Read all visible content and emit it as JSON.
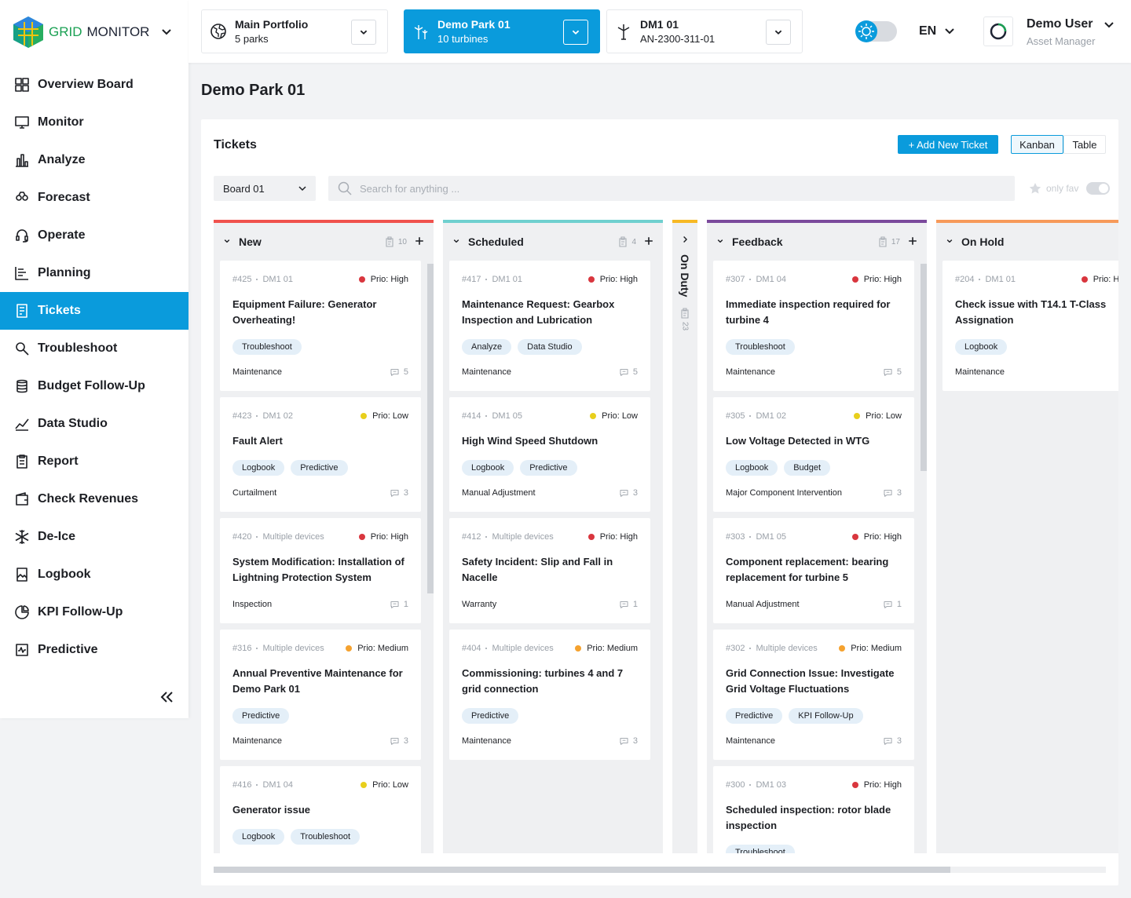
{
  "brand": {
    "part1": "GRID",
    "part2": "MONITOR"
  },
  "nav": [
    {
      "label": "Overview Board"
    },
    {
      "label": "Monitor"
    },
    {
      "label": "Analyze"
    },
    {
      "label": "Forecast"
    },
    {
      "label": "Operate"
    },
    {
      "label": "Planning"
    },
    {
      "label": "Tickets",
      "selected": true
    },
    {
      "label": "Troubleshoot"
    },
    {
      "label": "Budget Follow-Up"
    },
    {
      "label": "Data Studio"
    },
    {
      "label": "Report"
    },
    {
      "label": "Check Revenues"
    },
    {
      "label": "De-Ice"
    },
    {
      "label": "Logbook"
    },
    {
      "label": "KPI Follow-Up"
    },
    {
      "label": "Predictive"
    }
  ],
  "topbar": {
    "selectors": [
      {
        "title": "Main Portfolio",
        "subtitle": "5 parks"
      },
      {
        "title": "Demo Park 01",
        "subtitle": "10 turbines",
        "selected": true
      },
      {
        "title": "DM1 01",
        "subtitle": "AN-2300-311-01"
      }
    ],
    "language": "EN",
    "user": {
      "name": "Demo User",
      "role": "Asset Manager"
    }
  },
  "page_title": "Demo Park 01",
  "panel": {
    "title": "Tickets",
    "add_button": "+ Add New Ticket",
    "views": [
      {
        "label": "Kanban",
        "selected": true
      },
      {
        "label": "Table"
      }
    ],
    "board_select": "Board 01",
    "search_placeholder": "Search for anything ...",
    "fav_label": "only fav"
  },
  "columns": [
    {
      "name": "New",
      "count": "10",
      "color": "#f0524d",
      "cards": [
        {
          "id": "#425",
          "device": "DM1 01",
          "prio": "Prio: High",
          "prio_color": "#d9363e",
          "title": "Equipment Failure: Generator Overheating!",
          "tags": [
            "Troubleshoot"
          ],
          "category": "Maintenance",
          "comments": "5"
        },
        {
          "id": "#423",
          "device": "DM1 02",
          "prio": "Prio: Low",
          "prio_color": "#e8cf1c",
          "title": "Fault Alert",
          "tags": [
            "Logbook",
            "Predictive"
          ],
          "category": "Curtailment",
          "comments": "3"
        },
        {
          "id": "#420",
          "device": "Multiple devices",
          "prio": "Prio: High",
          "prio_color": "#d9363e",
          "title": "System Modification: Installation of Lightning Protection System",
          "tags": [],
          "category": "Inspection",
          "comments": "1"
        },
        {
          "id": "#316",
          "device": "Multiple devices",
          "prio": "Prio: Medium",
          "prio_color": "#f5a22f",
          "title": "Annual Preventive Maintenance for Demo Park 01",
          "tags": [
            "Predictive"
          ],
          "category": "Maintenance",
          "comments": "3"
        },
        {
          "id": "#416",
          "device": "DM1 04",
          "prio": "Prio: Low",
          "prio_color": "#e8cf1c",
          "title": "Generator issue",
          "tags": [
            "Logbook",
            "Troubleshoot"
          ]
        }
      ]
    },
    {
      "name": "Scheduled",
      "count": "4",
      "color": "#6fd0cf",
      "cards": [
        {
          "id": "#417",
          "device": "DM1 01",
          "prio": "Prio: High",
          "prio_color": "#d9363e",
          "title": "Maintenance Request: Gearbox Inspection and Lubrication",
          "tags": [
            "Analyze",
            "Data Studio"
          ],
          "category": "Maintenance",
          "comments": "5"
        },
        {
          "id": "#414",
          "device": "DM1 05",
          "prio": "Prio: Low",
          "prio_color": "#e8cf1c",
          "title": "High Wind Speed Shutdown",
          "tags": [
            "Logbook",
            "Predictive"
          ],
          "category": "Manual Adjustment",
          "comments": "3"
        },
        {
          "id": "#412",
          "device": "Multiple devices",
          "prio": "Prio: High",
          "prio_color": "#d9363e",
          "title": "Safety Incident: Slip and Fall in Nacelle",
          "tags": [],
          "category": "Warranty",
          "comments": "1"
        },
        {
          "id": "#404",
          "device": "Multiple devices",
          "prio": "Prio: Medium",
          "prio_color": "#f5a22f",
          "title": "Commissioning: turbines 4 and 7 grid connection",
          "tags": [
            "Predictive"
          ],
          "category": "Maintenance",
          "comments": "3"
        }
      ]
    },
    {
      "name": "On Duty",
      "count": "23",
      "color": "#f7b924",
      "collapsed": true,
      "cards": []
    },
    {
      "name": "Feedback",
      "count": "17",
      "color": "#7b4a9c",
      "cards": [
        {
          "id": "#307",
          "device": "DM1 04",
          "prio": "Prio: High",
          "prio_color": "#d9363e",
          "title": "Immediate inspection required for turbine 4",
          "tags": [
            "Troubleshoot"
          ],
          "category": "Maintenance",
          "comments": "5"
        },
        {
          "id": "#305",
          "device": "DM1 02",
          "prio": "Prio: Low",
          "prio_color": "#e8cf1c",
          "title": "Low Voltage Detected in WTG",
          "tags": [
            "Logbook",
            "Budget"
          ],
          "category": "Major Component Intervention",
          "comments": "3"
        },
        {
          "id": "#303",
          "device": "DM1 05",
          "prio": "Prio: High",
          "prio_color": "#d9363e",
          "title": "Component replacement: bearing replacement for turbine 5",
          "tags": [],
          "category": "Manual Adjustment",
          "comments": "1"
        },
        {
          "id": "#302",
          "device": "Multiple devices",
          "prio": "Prio: Medium",
          "prio_color": "#f5a22f",
          "title": "Grid Connection Issue: Investigate Grid Voltage Fluctuations",
          "tags": [
            "Predictive",
            "KPI Follow-Up"
          ],
          "category": "Maintenance",
          "comments": "3"
        },
        {
          "id": "#300",
          "device": "DM1 03",
          "prio": "Prio: High",
          "prio_color": "#d9363e",
          "title": "Scheduled inspection: rotor blade inspection",
          "tags": [
            "Troubleshoot"
          ]
        }
      ]
    },
    {
      "name": "On Hold",
      "color": "#f79a5a",
      "cards": [
        {
          "id": "#204",
          "device": "DM1 01",
          "prio": "Prio: High",
          "prio_color": "#d9363e",
          "title": "Check issue with T14.1 T-Class Assignation",
          "tags": [
            "Logbook"
          ],
          "category": "Maintenance"
        }
      ]
    }
  ]
}
